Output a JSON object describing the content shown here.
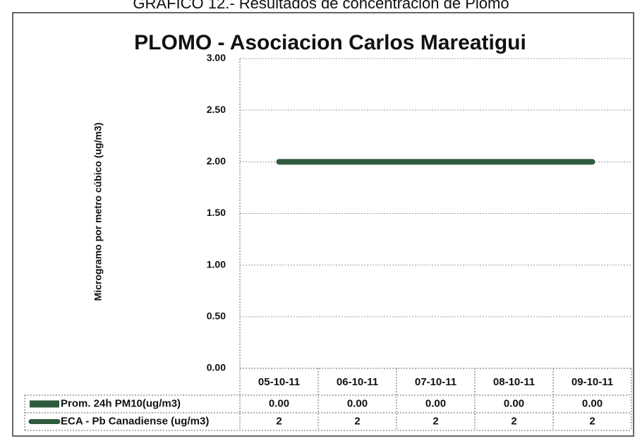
{
  "caption": "GRAFICO 12.- Resultados de concentracion de Plomo",
  "chart_data": {
    "type": "bar",
    "title": "PLOMO - Asociacion Carlos Mareatigui",
    "y_label": "Microgramo por metro cúbico (ug/m3)",
    "categories": [
      "05-10-11",
      "06-10-11",
      "07-10-11",
      "08-10-11",
      "09-10-11"
    ],
    "series": [
      {
        "name": "Prom. 24h PM10(ug/m3)",
        "type": "bar",
        "color": "#2f5b3c",
        "values": [
          0,
          0,
          0,
          0,
          0
        ],
        "value_labels": [
          "0.00",
          "0.00",
          "0.00",
          "0.00",
          "0.00"
        ]
      },
      {
        "name": "ECA - Pb Canadiense (ug/m3)",
        "type": "line",
        "color": "#2f5b3c",
        "values": [
          2,
          2,
          2,
          2,
          2
        ]
      }
    ],
    "ylim": [
      0,
      3
    ],
    "yticks": [
      {
        "value": 0,
        "label": "0.00"
      },
      {
        "value": 0.5,
        "label": "0.50"
      },
      {
        "value": 1,
        "label": "1.00"
      },
      {
        "value": 1.5,
        "label": "1.50"
      },
      {
        "value": 2,
        "label": "2.00"
      },
      {
        "value": 2.5,
        "label": "2.50"
      },
      {
        "value": 3,
        "label": "3.00"
      }
    ],
    "grid": true
  }
}
